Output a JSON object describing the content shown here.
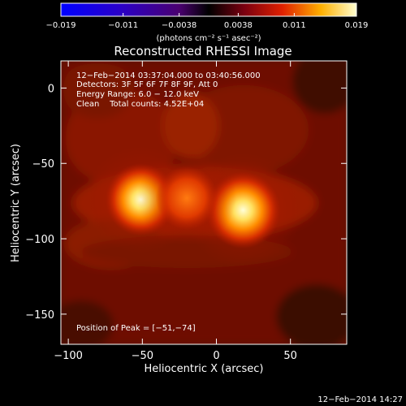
{
  "chart_data": {
    "type": "heatmap",
    "title": "Reconstructed RHESSI Image",
    "xlabel": "Heliocentric X (arcsec)",
    "ylabel": "Heliocentric Y (arcsec)",
    "xlim": [
      -105,
      88
    ],
    "ylim": [
      -170,
      18
    ],
    "xticks": [
      -100,
      -50,
      0,
      50
    ],
    "xtick_labels": [
      "−100",
      "−50",
      "0",
      "50"
    ],
    "yticks": [
      0,
      -50,
      -100,
      -150
    ],
    "ytick_labels": [
      "0",
      "−50",
      "−100",
      "−150"
    ],
    "colorbar": {
      "range": [
        -0.019,
        0.019
      ],
      "ticks": [
        -0.019,
        -0.011,
        -0.0038,
        0.0038,
        0.011,
        0.019
      ],
      "tick_labels": [
        "−0.019",
        "−0.011",
        "−0.0038",
        "0.0038",
        "0.011",
        "0.019"
      ],
      "units": "(photons cm⁻² s⁻¹ asec⁻²)"
    },
    "info_lines": [
      "12−Feb−2014 03:37:04.000 to 03:40:56.000",
      "Detectors: 3F 5F 6F 7F 8F 9F, Att 0",
      "Energy Range: 6.0 − 12.0 keV",
      "Clean    Total counts: 4.52E+04"
    ],
    "peak_label": "Position of Peak = [−51,−74]",
    "sources": [
      {
        "x": -51,
        "y": -74,
        "amplitude": 0.019,
        "sigma": 8
      },
      {
        "x": 18,
        "y": -81,
        "amplitude": 0.017,
        "sigma": 8.5
      },
      {
        "x": -20,
        "y": -73,
        "amplitude": 0.007,
        "sigma": 7
      }
    ]
  },
  "footer_timestamp": "12−Feb−2014 14:27"
}
